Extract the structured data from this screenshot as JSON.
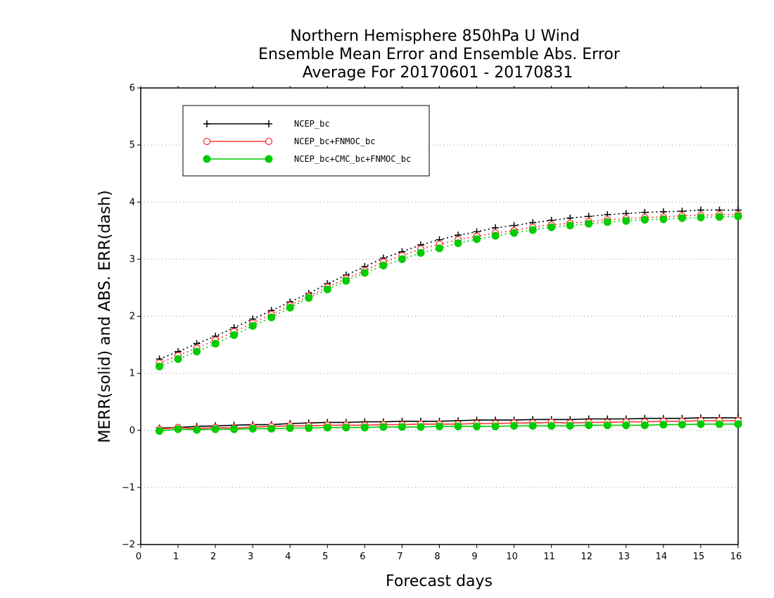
{
  "chart_data": {
    "type": "line",
    "title": [
      "Northern Hemisphere 850hPa U Wind",
      "Ensemble Mean Error and Ensemble Abs. Error",
      "Average For 20170601 - 20170831"
    ],
    "xlabel": "Forecast days",
    "ylabel": "MERR(solid) and ABS. ERR(dash)",
    "xlim": [
      0,
      16
    ],
    "ylim": [
      -2,
      6
    ],
    "xticks": [
      "0",
      "1",
      "2",
      "3",
      "4",
      "5",
      "6",
      "7",
      "8",
      "9",
      "10",
      "11",
      "12",
      "13",
      "14",
      "15",
      "16"
    ],
    "yticks": [
      "-2",
      "-1",
      "0",
      "1",
      "2",
      "3",
      "4",
      "5",
      "6"
    ],
    "grid": "horizontal dotted",
    "legend_position": "top-left",
    "x": [
      0.5,
      1,
      1.5,
      2,
      2.5,
      3,
      3.5,
      4,
      4.5,
      5,
      5.5,
      6,
      6.5,
      7,
      7.5,
      8,
      8.5,
      9,
      9.5,
      10,
      10.5,
      11,
      11.5,
      12,
      12.5,
      13,
      13.5,
      14,
      14.5,
      15,
      15.5,
      16
    ],
    "series": [
      {
        "name": "NCEP_bc",
        "color": "#000000",
        "marker": "plus",
        "abs_err": [
          1.25,
          1.38,
          1.52,
          1.65,
          1.8,
          1.95,
          2.1,
          2.25,
          2.4,
          2.57,
          2.72,
          2.87,
          3.02,
          3.13,
          3.25,
          3.34,
          3.42,
          3.48,
          3.55,
          3.59,
          3.64,
          3.68,
          3.72,
          3.75,
          3.78,
          3.8,
          3.82,
          3.83,
          3.84,
          3.86,
          3.86,
          3.86
        ],
        "mean_err": [
          0.04,
          0.05,
          0.07,
          0.08,
          0.09,
          0.1,
          0.1,
          0.12,
          0.13,
          0.14,
          0.14,
          0.15,
          0.15,
          0.16,
          0.16,
          0.16,
          0.17,
          0.18,
          0.18,
          0.18,
          0.19,
          0.19,
          0.19,
          0.2,
          0.2,
          0.2,
          0.21,
          0.21,
          0.21,
          0.22,
          0.22,
          0.22
        ]
      },
      {
        "name": "NCEP_bc+FNMOC_bc",
        "color": "#ff3333",
        "marker": "open-circle",
        "abs_err": [
          1.18,
          1.31,
          1.44,
          1.58,
          1.73,
          1.88,
          2.03,
          2.19,
          2.35,
          2.51,
          2.66,
          2.8,
          2.95,
          3.06,
          3.18,
          3.26,
          3.34,
          3.4,
          3.46,
          3.5,
          3.56,
          3.6,
          3.63,
          3.66,
          3.69,
          3.71,
          3.73,
          3.74,
          3.76,
          3.77,
          3.78,
          3.78
        ],
        "mean_err": [
          0.02,
          0.05,
          0.03,
          0.05,
          0.04,
          0.06,
          0.07,
          0.08,
          0.08,
          0.09,
          0.09,
          0.09,
          0.1,
          0.1,
          0.11,
          0.11,
          0.11,
          0.12,
          0.12,
          0.13,
          0.13,
          0.14,
          0.13,
          0.14,
          0.14,
          0.15,
          0.15,
          0.16,
          0.16,
          0.17,
          0.17,
          0.17
        ]
      },
      {
        "name": "NCEP_bc+CMC_bc+FNMOC_bc",
        "color": "#00cc00",
        "marker": "filled-circle",
        "abs_err": [
          1.12,
          1.25,
          1.38,
          1.52,
          1.67,
          1.83,
          1.98,
          2.15,
          2.32,
          2.47,
          2.62,
          2.76,
          2.89,
          3.0,
          3.11,
          3.19,
          3.28,
          3.35,
          3.41,
          3.46,
          3.51,
          3.56,
          3.59,
          3.62,
          3.65,
          3.67,
          3.69,
          3.7,
          3.72,
          3.73,
          3.74,
          3.75
        ],
        "mean_err": [
          -0.01,
          0.02,
          0.01,
          0.02,
          0.02,
          0.03,
          0.03,
          0.04,
          0.04,
          0.05,
          0.05,
          0.05,
          0.06,
          0.06,
          0.06,
          0.07,
          0.07,
          0.07,
          0.07,
          0.08,
          0.08,
          0.08,
          0.08,
          0.09,
          0.09,
          0.09,
          0.09,
          0.1,
          0.1,
          0.11,
          0.11,
          0.11
        ]
      }
    ]
  }
}
